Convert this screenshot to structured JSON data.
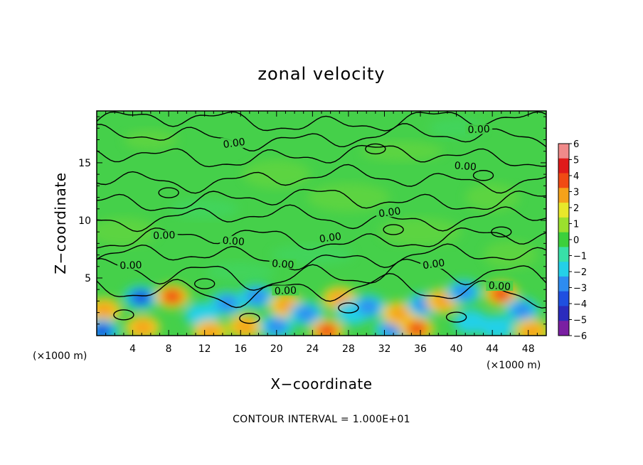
{
  "chart_data": {
    "type": "heatmap",
    "title": "zonal velocity",
    "xlabel": "X−coordinate",
    "ylabel": "Z−coordinate",
    "x_unit_label": "(×1000 m)",
    "x_unit_label_right": "(×1000 m)",
    "footer": "CONTOUR INTERVAL = 1.000E+01",
    "xlim": [
      0,
      50
    ],
    "ylim": [
      0,
      19.5
    ],
    "x_ticks": [
      4,
      8,
      12,
      16,
      20,
      24,
      28,
      32,
      36,
      40,
      44,
      48
    ],
    "x_tick_labels": [
      "4",
      "8",
      "12",
      "16",
      "20",
      "24",
      "28",
      "32",
      "36",
      "40",
      "44",
      "48"
    ],
    "y_ticks": [
      5,
      10,
      15
    ],
    "y_tick_labels": [
      "5",
      "10",
      "15"
    ],
    "colorbar": {
      "min": -6,
      "max": 6,
      "levels": [
        -6,
        -5,
        -4,
        -3,
        -2,
        -1,
        0,
        1,
        2,
        3,
        4,
        5,
        6
      ],
      "labels": [
        "−6",
        "−5",
        "−4",
        "−3",
        "−2",
        "−1",
        "0",
        "1",
        "2",
        "3",
        "4",
        "5",
        "6"
      ],
      "colors": [
        "#7a1fa2",
        "#2b2bbd",
        "#1f4fe0",
        "#2e8cf0",
        "#24d0e8",
        "#38e0a8",
        "#3cd03c",
        "#9be02e",
        "#e8e82a",
        "#f5a21a",
        "#f04a14",
        "#e01a1a",
        "#f08a8a"
      ]
    },
    "contour_labels": [
      {
        "text": "0.00",
        "x": 15.3,
        "y": 16.6
      },
      {
        "text": "0.00",
        "x": 42.5,
        "y": 17.8
      },
      {
        "text": "0.00",
        "x": 41.0,
        "y": 14.6
      },
      {
        "text": "0.00",
        "x": 32.6,
        "y": 10.6
      },
      {
        "text": "0.00",
        "x": 7.5,
        "y": 8.6
      },
      {
        "text": "0.00",
        "x": 15.2,
        "y": 8.1
      },
      {
        "text": "0.00",
        "x": 26.0,
        "y": 8.4
      },
      {
        "text": "0.00",
        "x": 3.8,
        "y": 6.0
      },
      {
        "text": "0.00",
        "x": 20.7,
        "y": 6.1
      },
      {
        "text": "0.00",
        "x": 37.5,
        "y": 6.1
      },
      {
        "text": "0.00",
        "x": 21.0,
        "y": 3.8
      },
      {
        "text": "0.00",
        "x": 44.8,
        "y": 4.2
      }
    ],
    "surface_layer_cells": [
      {
        "x": 0.8,
        "z": 2.2,
        "v": 3.2
      },
      {
        "x": 4.9,
        "z": 3.3,
        "v": -3.6
      },
      {
        "x": 8.4,
        "z": 3.4,
        "v": 4.3
      },
      {
        "x": 0.6,
        "z": 0.4,
        "v": -3.8
      },
      {
        "x": 5.1,
        "z": 0.7,
        "v": 3.4
      },
      {
        "x": 11.7,
        "z": 1.8,
        "v": -2.4
      },
      {
        "x": 12.6,
        "z": 0.3,
        "v": 3.0
      },
      {
        "x": 14.5,
        "z": 2.8,
        "v": -2.6
      },
      {
        "x": 16.5,
        "z": 0.8,
        "v": 3.2
      },
      {
        "x": 17.8,
        "z": 3.4,
        "v": -3.0
      },
      {
        "x": 20.0,
        "z": 0.8,
        "v": -3.2
      },
      {
        "x": 21.1,
        "z": 2.6,
        "v": 3.0
      },
      {
        "x": 23.3,
        "z": 1.9,
        "v": -2.8
      },
      {
        "x": 25.6,
        "z": 0.4,
        "v": 4.0
      },
      {
        "x": 27.0,
        "z": 3.2,
        "v": 3.2
      },
      {
        "x": 28.5,
        "z": 2.0,
        "v": -2.2
      },
      {
        "x": 30.2,
        "z": 2.5,
        "v": -2.6
      },
      {
        "x": 32.8,
        "z": 0.5,
        "v": -3.4
      },
      {
        "x": 33.6,
        "z": 1.9,
        "v": 3.4
      },
      {
        "x": 35.6,
        "z": 0.6,
        "v": 3.8
      },
      {
        "x": 36.4,
        "z": 2.7,
        "v": -2.8
      },
      {
        "x": 38.5,
        "z": 3.0,
        "v": 3.2
      },
      {
        "x": 40.8,
        "z": 3.8,
        "v": -3.2
      },
      {
        "x": 41.6,
        "z": 1.2,
        "v": -2.4
      },
      {
        "x": 45.0,
        "z": 3.6,
        "v": 4.1
      },
      {
        "x": 47.3,
        "z": 2.2,
        "v": -2.6
      },
      {
        "x": 48.4,
        "z": 0.4,
        "v": 3.3
      },
      {
        "x": 44.5,
        "z": 0.7,
        "v": -2.3
      }
    ]
  }
}
